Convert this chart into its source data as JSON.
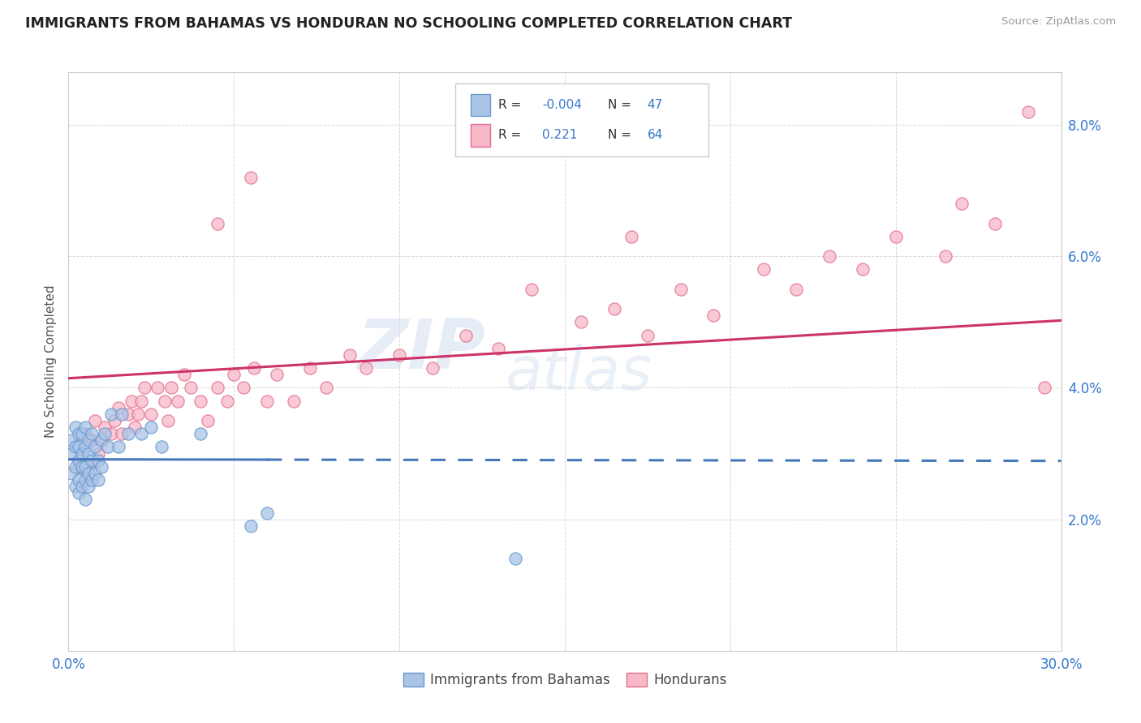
{
  "title": "IMMIGRANTS FROM BAHAMAS VS HONDURAN NO SCHOOLING COMPLETED CORRELATION CHART",
  "source": "Source: ZipAtlas.com",
  "ylabel": "No Schooling Completed",
  "xlim": [
    0.0,
    0.3
  ],
  "ylim": [
    0.0,
    0.088
  ],
  "xticks": [
    0.0,
    0.05,
    0.1,
    0.15,
    0.2,
    0.25,
    0.3
  ],
  "yticks": [
    0.0,
    0.02,
    0.04,
    0.06,
    0.08
  ],
  "blue_color": "#aac4e8",
  "blue_edge_color": "#6699cc",
  "pink_color": "#f8b8c8",
  "pink_edge_color": "#e07090",
  "blue_line_color": "#4477bb",
  "pink_line_color": "#cc3366",
  "grid_color": "#bbbbbb",
  "blue_R": -0.004,
  "blue_N": 47,
  "pink_R": 0.221,
  "pink_N": 64,
  "blue_scatter_x": [
    0.001,
    0.001,
    0.001,
    0.002,
    0.002,
    0.002,
    0.002,
    0.003,
    0.003,
    0.003,
    0.003,
    0.003,
    0.004,
    0.004,
    0.004,
    0.004,
    0.005,
    0.005,
    0.005,
    0.005,
    0.005,
    0.006,
    0.006,
    0.006,
    0.006,
    0.007,
    0.007,
    0.007,
    0.008,
    0.008,
    0.009,
    0.009,
    0.01,
    0.01,
    0.011,
    0.012,
    0.013,
    0.015,
    0.016,
    0.018,
    0.022,
    0.025,
    0.028,
    0.04,
    0.055,
    0.06,
    0.135
  ],
  "blue_scatter_y": [
    0.027,
    0.03,
    0.032,
    0.025,
    0.028,
    0.031,
    0.034,
    0.024,
    0.026,
    0.029,
    0.031,
    0.033,
    0.025,
    0.028,
    0.03,
    0.033,
    0.023,
    0.026,
    0.028,
    0.031,
    0.034,
    0.025,
    0.027,
    0.03,
    0.032,
    0.026,
    0.029,
    0.033,
    0.027,
    0.031,
    0.026,
    0.029,
    0.028,
    0.032,
    0.033,
    0.031,
    0.036,
    0.031,
    0.036,
    0.033,
    0.033,
    0.034,
    0.031,
    0.033,
    0.019,
    0.021,
    0.014
  ],
  "pink_scatter_x": [
    0.003,
    0.004,
    0.005,
    0.006,
    0.007,
    0.008,
    0.009,
    0.01,
    0.011,
    0.013,
    0.014,
    0.015,
    0.016,
    0.018,
    0.019,
    0.02,
    0.021,
    0.022,
    0.023,
    0.025,
    0.027,
    0.029,
    0.03,
    0.031,
    0.033,
    0.035,
    0.037,
    0.04,
    0.042,
    0.045,
    0.048,
    0.05,
    0.053,
    0.056,
    0.06,
    0.063,
    0.068,
    0.073,
    0.078,
    0.085,
    0.09,
    0.1,
    0.11,
    0.12,
    0.13,
    0.14,
    0.155,
    0.165,
    0.175,
    0.185,
    0.195,
    0.21,
    0.22,
    0.23,
    0.24,
    0.25,
    0.265,
    0.27,
    0.28,
    0.29,
    0.045,
    0.055,
    0.17,
    0.295
  ],
  "pink_scatter_y": [
    0.028,
    0.03,
    0.033,
    0.028,
    0.032,
    0.035,
    0.03,
    0.032,
    0.034,
    0.033,
    0.035,
    0.037,
    0.033,
    0.036,
    0.038,
    0.034,
    0.036,
    0.038,
    0.04,
    0.036,
    0.04,
    0.038,
    0.035,
    0.04,
    0.038,
    0.042,
    0.04,
    0.038,
    0.035,
    0.04,
    0.038,
    0.042,
    0.04,
    0.043,
    0.038,
    0.042,
    0.038,
    0.043,
    0.04,
    0.045,
    0.043,
    0.045,
    0.043,
    0.048,
    0.046,
    0.055,
    0.05,
    0.052,
    0.048,
    0.055,
    0.051,
    0.058,
    0.055,
    0.06,
    0.058,
    0.063,
    0.06,
    0.068,
    0.065,
    0.082,
    0.065,
    0.072,
    0.063,
    0.04
  ]
}
